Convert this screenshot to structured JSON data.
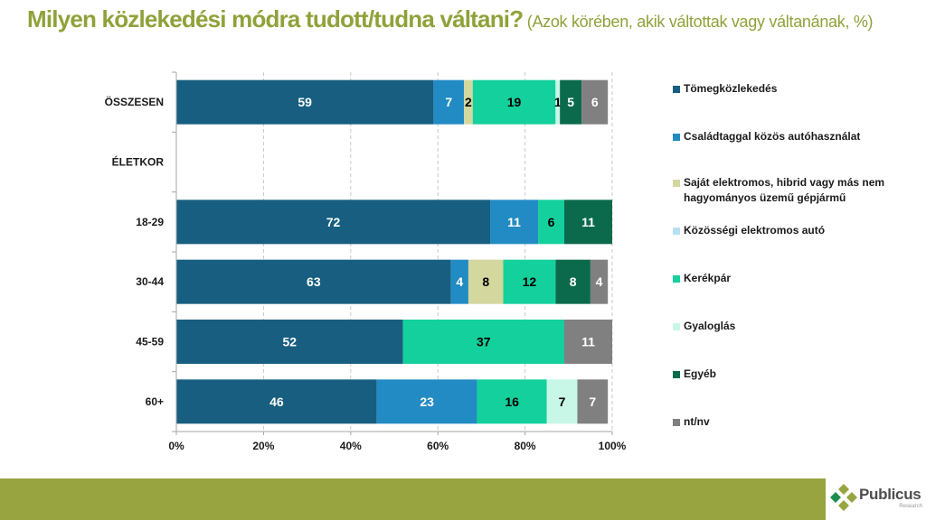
{
  "header": {
    "title": "Milyen közlekedési módra tudott/tudna váltani?",
    "subtitle": "(Azok körében, akik váltottak vagy váltanának, %)"
  },
  "chart_data": {
    "type": "bar",
    "orientation": "horizontal",
    "stacked": "percent",
    "title": "Milyen közlekedési módra tudott/tudna váltani?",
    "subtitle": "(Azok körében, akik váltottak vagy váltanának, %)",
    "xlabel": "",
    "ylabel": "",
    "xlim": [
      0,
      100
    ],
    "x_ticks": [
      "0%",
      "20%",
      "40%",
      "60%",
      "80%",
      "100%"
    ],
    "grid": "vertical dashed",
    "legend_position": "right",
    "categories": [
      "ÖSSZESEN",
      "ÉLETKOR",
      "18-29",
      "30-44",
      "45-59",
      "60+"
    ],
    "series": [
      {
        "name": "Tömegközlekedés",
        "color": "#175e80",
        "label_color": "#ffffff",
        "values": [
          59,
          null,
          72,
          63,
          52,
          46
        ]
      },
      {
        "name": "Családtaggal közös autóhasználat",
        "color": "#228bc3",
        "label_color": "#ffffff",
        "values": [
          7,
          null,
          11,
          4,
          null,
          23
        ]
      },
      {
        "name": "Saját elektromos, hibrid vagy más nem hagyományos üzemű gépjármű",
        "color": "#d4d79e",
        "label_color": "#000000",
        "values": [
          2,
          null,
          null,
          8,
          null,
          null
        ]
      },
      {
        "name": "Közösségi elektromos autó",
        "color": "#b8e0f2",
        "label_color": "#000000",
        "values": [
          null,
          null,
          null,
          null,
          null,
          null
        ]
      },
      {
        "name": "Kerékpár",
        "color": "#14d09c",
        "label_color": "#000000",
        "values": [
          19,
          null,
          6,
          12,
          37,
          16
        ]
      },
      {
        "name": "Gyaloglás",
        "color": "#c8f7e7",
        "label_color": "#000000",
        "values": [
          1,
          null,
          null,
          null,
          null,
          7
        ]
      },
      {
        "name": "Egyéb",
        "color": "#0b6a4b",
        "label_color": "#ffffff",
        "values": [
          5,
          null,
          11,
          8,
          null,
          null
        ]
      },
      {
        "name": "nt/nv",
        "color": "#808080",
        "label_color": "#ffffff",
        "values": [
          6,
          null,
          null,
          4,
          11,
          7
        ]
      }
    ]
  },
  "legend": {
    "items": [
      "Tömegközlekedés",
      "Családtaggal közös autóhasználat",
      "Saját elektromos, hibrid vagy más nem hagyományos üzemű gépjármű",
      "Közösségi elektromos autó",
      "Kerékpár",
      "Gyaloglás",
      "Egyéb",
      "nt/nv"
    ]
  },
  "footer": {
    "brand": "Publicus",
    "brand_sub": "Research",
    "band_color": "#98a43f"
  }
}
